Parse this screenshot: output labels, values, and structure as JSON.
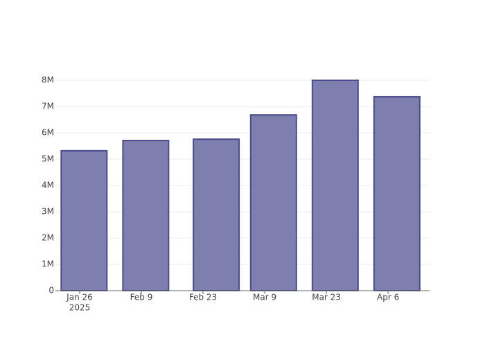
{
  "chart_data": {
    "type": "bar",
    "x": [
      "2025-01-27",
      "2025-02-10",
      "2025-02-26",
      "2025-03-11",
      "2025-03-25",
      "2025-04-08"
    ],
    "values": [
      5320000,
      5710000,
      5760000,
      6680000,
      8000000,
      7370000
    ],
    "color": "#7f7faf",
    "edgecolor": "#4b4b8c",
    "xlim": [
      "2025-01-20T12:00",
      "2025-04-15T10:00"
    ],
    "xticks": [
      {
        "value": "2025-01-26",
        "label": "Jan 26",
        "sublabel": "2025"
      },
      {
        "value": "2025-02-09",
        "label": "Feb 9"
      },
      {
        "value": "2025-02-23",
        "label": "Feb 23"
      },
      {
        "value": "2025-03-09",
        "label": "Mar 9"
      },
      {
        "value": "2025-03-23",
        "label": "Mar 23"
      },
      {
        "value": "2025-04-06",
        "label": "Apr 6"
      }
    ],
    "ylim": [
      0,
      8000000
    ],
    "yticks": [
      0,
      {
        "value": 1000000,
        "label": "1M"
      },
      {
        "value": 2000000,
        "label": "2M"
      },
      {
        "value": 3000000,
        "label": "3M"
      },
      {
        "value": 4000000,
        "label": "4M"
      },
      {
        "value": 5000000,
        "label": "5M"
      },
      {
        "value": 6000000,
        "label": "6M"
      },
      {
        "value": 7000000,
        "label": "7M"
      },
      {
        "value": 8000000,
        "label": "8M"
      }
    ],
    "grid": true
  }
}
